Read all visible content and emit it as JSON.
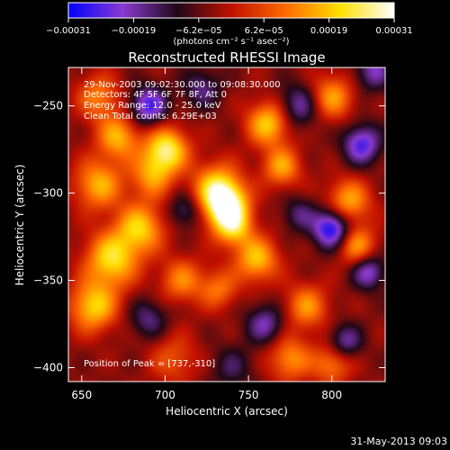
{
  "chart_data": {
    "type": "heatmap",
    "title": "Reconstructed RHESSI Image",
    "xlabel": "Heliocentric X (arcsec)",
    "ylabel": "Heliocentric Y (arcsec)",
    "xlim": [
      642,
      832
    ],
    "ylim": [
      -408,
      -228
    ],
    "xticks": [
      650,
      700,
      750,
      800
    ],
    "yticks": [
      -250,
      -300,
      -350,
      -400
    ],
    "xtick_labels": [
      "650",
      "700",
      "750",
      "800"
    ],
    "ytick_labels": [
      "−250",
      "−300",
      "−350",
      "−400"
    ],
    "colorbar": {
      "range": [
        -0.00031,
        0.00031
      ],
      "tick_labels": [
        "−0.00031",
        "−0.00019",
        "−6.2e−05",
        "6.2e−05",
        "0.00019",
        "0.00031"
      ],
      "units_label": "(photons cm⁻² s⁻¹ asec⁻²)",
      "colors": [
        "#0000ff",
        "#8a3ad0",
        "#200818",
        "#c01000",
        "#ff6a00",
        "#ffe000",
        "#ffffff"
      ]
    },
    "annotations": [
      "29-Nov-2003 09:02:30.000 to 09:08:30.000",
      "Detectors: 4F 5F 6F 7F 8F, Att 0",
      "Energy Range: 12.0 - 25.0 keV",
      "Clean    Total counts: 6.29E+03"
    ],
    "peak_label": "Position of Peak = [737,-310]",
    "peak": {
      "x": 737,
      "y": -310
    },
    "blobs": [
      {
        "x": 737,
        "y": -308,
        "v": 1.0,
        "s": 9
      },
      {
        "x": 731,
        "y": -297,
        "v": 0.75,
        "s": 10
      },
      {
        "x": 741,
        "y": -320,
        "v": 0.6,
        "s": 8
      },
      {
        "x": 701,
        "y": -275,
        "v": 0.9,
        "s": 9
      },
      {
        "x": 692,
        "y": -290,
        "v": 0.55,
        "s": 9
      },
      {
        "x": 672,
        "y": -268,
        "v": 0.65,
        "s": 9
      },
      {
        "x": 660,
        "y": -295,
        "v": 0.65,
        "s": 10
      },
      {
        "x": 685,
        "y": -320,
        "v": 0.72,
        "s": 10
      },
      {
        "x": 668,
        "y": -338,
        "v": 0.8,
        "s": 11
      },
      {
        "x": 657,
        "y": -365,
        "v": 0.75,
        "s": 10
      },
      {
        "x": 710,
        "y": -350,
        "v": 0.5,
        "s": 9
      },
      {
        "x": 732,
        "y": -355,
        "v": 0.45,
        "s": 8
      },
      {
        "x": 755,
        "y": -338,
        "v": 0.7,
        "s": 9
      },
      {
        "x": 762,
        "y": -260,
        "v": 0.75,
        "s": 9
      },
      {
        "x": 770,
        "y": -285,
        "v": 0.6,
        "s": 8
      },
      {
        "x": 800,
        "y": -245,
        "v": 0.6,
        "s": 9
      },
      {
        "x": 810,
        "y": -305,
        "v": 0.65,
        "s": 9
      },
      {
        "x": 815,
        "y": -330,
        "v": 0.6,
        "s": 8
      },
      {
        "x": 785,
        "y": -365,
        "v": 0.55,
        "s": 9
      },
      {
        "x": 775,
        "y": -395,
        "v": 0.55,
        "s": 9
      },
      {
        "x": 800,
        "y": -398,
        "v": 0.5,
        "s": 8
      },
      {
        "x": 705,
        "y": -395,
        "v": 0.35,
        "s": 10
      },
      {
        "x": 660,
        "y": -245,
        "v": 0.5,
        "s": 9
      },
      {
        "x": 690,
        "y": -250,
        "v": -0.7,
        "s": 8
      },
      {
        "x": 712,
        "y": -310,
        "v": -0.4,
        "s": 7
      },
      {
        "x": 780,
        "y": -250,
        "v": -0.5,
        "s": 9
      },
      {
        "x": 722,
        "y": -240,
        "v": -0.4,
        "s": 8
      },
      {
        "x": 800,
        "y": -320,
        "v": -0.9,
        "s": 8
      },
      {
        "x": 822,
        "y": -345,
        "v": -0.6,
        "s": 7
      },
      {
        "x": 818,
        "y": -272,
        "v": -0.7,
        "s": 8
      },
      {
        "x": 760,
        "y": -375,
        "v": -0.5,
        "s": 8
      },
      {
        "x": 690,
        "y": -372,
        "v": -0.4,
        "s": 8
      },
      {
        "x": 808,
        "y": -385,
        "v": -0.5,
        "s": 7
      },
      {
        "x": 825,
        "y": -230,
        "v": -0.5,
        "s": 8
      },
      {
        "x": 740,
        "y": -400,
        "v": -0.3,
        "s": 9
      },
      {
        "x": 780,
        "y": -312,
        "v": -0.35,
        "s": 7
      }
    ]
  },
  "footer": {
    "date": "31-May-2013 09:03"
  }
}
